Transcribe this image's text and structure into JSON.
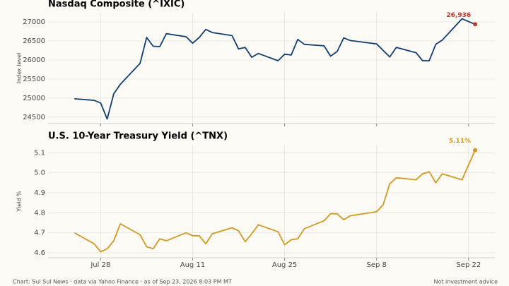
{
  "chart_data": [
    {
      "type": "line",
      "title": "Nasdaq Composite (^IXIC)",
      "y_label": "Index level",
      "x": [
        "Jul 24",
        "Jul 27",
        "Jul 28",
        "Jul 29",
        "Jul 30",
        "Jul 31",
        "Aug 3",
        "Aug 4",
        "Aug 5",
        "Aug 6",
        "Aug 7",
        "Aug 10",
        "Aug 11",
        "Aug 12",
        "Aug 13",
        "Aug 14",
        "Aug 17",
        "Aug 18",
        "Aug 19",
        "Aug 20",
        "Aug 21",
        "Aug 24",
        "Aug 25",
        "Aug 26",
        "Aug 27",
        "Aug 28",
        "Aug 31",
        "Sep 1",
        "Sep 2",
        "Sep 3",
        "Sep 4",
        "Sep 8",
        "Sep 9",
        "Sep 10",
        "Sep 11",
        "Sep 14",
        "Sep 15",
        "Sep 16",
        "Sep 17",
        "Sep 18",
        "Sep 21",
        "Sep 23"
      ],
      "series": [
        {
          "name": "Nasdaq Composite",
          "color": "#0f3f73",
          "marker_color": "#c0392b",
          "values": [
            24980,
            24940,
            24870,
            24450,
            25110,
            25360,
            25910,
            26590,
            26360,
            26350,
            26690,
            26610,
            26440,
            26590,
            26800,
            26720,
            26640,
            26290,
            26330,
            26070,
            26170,
            25980,
            26150,
            26130,
            26540,
            26410,
            26370,
            26100,
            26220,
            26580,
            26510,
            26420,
            26250,
            26080,
            26330,
            26190,
            25980,
            25980,
            26410,
            26520,
            27080,
            26936
          ],
          "value_labels": [
            null,
            null,
            null,
            null,
            null,
            null,
            null,
            null,
            null,
            null,
            null,
            null,
            null,
            null,
            null,
            null,
            null,
            null,
            null,
            null,
            null,
            null,
            null,
            null,
            null,
            null,
            null,
            null,
            null,
            null,
            null,
            null,
            null,
            null,
            null,
            null,
            null,
            null,
            null,
            null,
            null,
            "26,936"
          ]
        }
      ],
      "xlim": [
        "Jul 20",
        "Sep 26"
      ],
      "ylim": [
        24330,
        27240
      ],
      "yticks": [
        24500,
        25000,
        25500,
        26000,
        26500,
        27000
      ],
      "grid": true
    },
    {
      "type": "line",
      "title": "U.S. 10-Year Treasury Yield (^TNX)",
      "y_label": "Yield %",
      "x": [
        "Jul 24",
        "Jul 27",
        "Jul 28",
        "Jul 29",
        "Jul 30",
        "Jul 31",
        "Aug 3",
        "Aug 4",
        "Aug 5",
        "Aug 6",
        "Aug 7",
        "Aug 10",
        "Aug 11",
        "Aug 12",
        "Aug 13",
        "Aug 14",
        "Aug 17",
        "Aug 18",
        "Aug 19",
        "Aug 20",
        "Aug 21",
        "Aug 24",
        "Aug 25",
        "Aug 26",
        "Aug 27",
        "Aug 28",
        "Aug 31",
        "Sep 1",
        "Sep 2",
        "Sep 3",
        "Sep 4",
        "Sep 8",
        "Sep 9",
        "Sep 10",
        "Sep 11",
        "Sep 14",
        "Sep 15",
        "Sep 16",
        "Sep 17",
        "Sep 18",
        "Sep 21",
        "Sep 23"
      ],
      "series": [
        {
          "name": "10-Year Treasury Yield",
          "color": "#d49a1a",
          "marker_color": "#d49a1a",
          "values": [
            4.7,
            4.645,
            4.605,
            4.62,
            4.66,
            4.745,
            4.69,
            4.63,
            4.62,
            4.67,
            4.66,
            4.7,
            4.685,
            4.685,
            4.645,
            4.695,
            4.725,
            4.71,
            4.655,
            4.695,
            4.74,
            4.705,
            4.64,
            4.665,
            4.67,
            4.72,
            4.76,
            4.795,
            4.795,
            4.765,
            4.785,
            4.805,
            4.84,
            4.945,
            4.975,
            4.965,
            4.995,
            5.005,
            4.95,
            4.995,
            4.965,
            5.113
          ],
          "value_labels": [
            null,
            null,
            null,
            null,
            null,
            null,
            null,
            null,
            null,
            null,
            null,
            null,
            null,
            null,
            null,
            null,
            null,
            null,
            null,
            null,
            null,
            null,
            null,
            null,
            null,
            null,
            null,
            null,
            null,
            null,
            null,
            null,
            null,
            null,
            null,
            null,
            null,
            null,
            null,
            null,
            null,
            "5.11%"
          ]
        }
      ],
      "xlim": [
        "Jul 20",
        "Sep 26"
      ],
      "ylim": [
        4.575,
        5.14
      ],
      "yticks": [
        4.6,
        4.7,
        4.8,
        4.9,
        {
          "value": 5,
          "label": "5.0"
        },
        5.1
      ],
      "xticks": [
        "Jul 28",
        "Aug 11",
        "Aug 25",
        "Sep 8",
        "Sep 22"
      ],
      "grid": true
    }
  ],
  "footer": {
    "source": "Chart: Sul Sul News · data via Yahoo Finance · as of Sep 23, 2026 8:03 PM MT",
    "note": "Not investment advice"
  }
}
